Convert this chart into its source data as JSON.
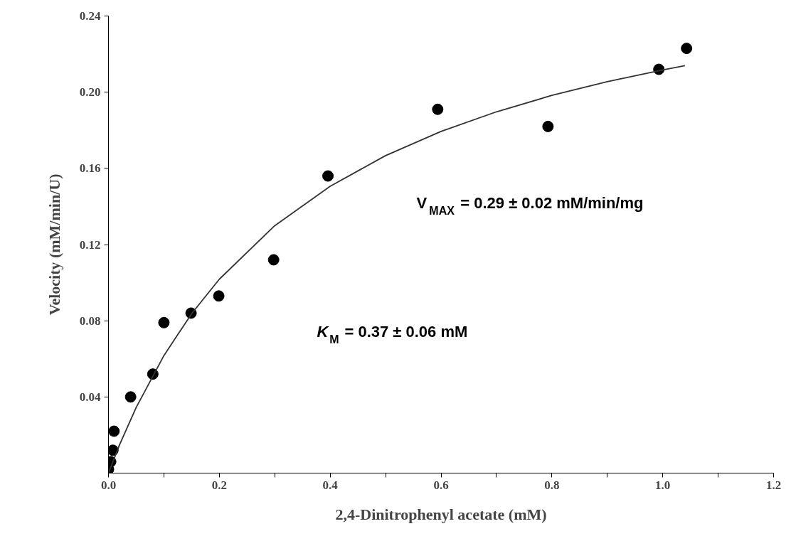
{
  "chart_data": {
    "type": "scatter",
    "xlabel": "2,4-Dinitrophenyl acetate (mM)",
    "ylabel": "Velocity (mM/min/U)",
    "xlim": [
      0,
      1.2
    ],
    "ylim": [
      0,
      0.24
    ],
    "xticks": [
      {
        "value": 0,
        "label": "0.0"
      },
      {
        "value": 0.1,
        "label": null
      },
      0.2,
      {
        "value": 0.3,
        "label": null
      },
      0.4,
      {
        "value": 0.5,
        "label": null
      },
      0.6,
      {
        "value": 0.7,
        "label": null
      },
      0.8,
      {
        "value": 0.9,
        "label": null
      },
      {
        "value": 1.0,
        "label": "1.0"
      },
      {
        "value": 1.1,
        "label": null
      },
      1.2
    ],
    "yticks": [
      0.04,
      0.08,
      0.12,
      0.16,
      {
        "value": 0.2,
        "label": "0.20"
      },
      0.24
    ],
    "grid": false,
    "series": [
      {
        "color": "#000000",
        "marker": "circle",
        "x": [
          0,
          0.004,
          0.008,
          0.01,
          0.04,
          0.08,
          0.1,
          0.149,
          0.199,
          0.298,
          0.396,
          0.594,
          0.793,
          0.993,
          1.043
        ],
        "values": [
          0.002,
          0.006,
          0.012,
          0.022,
          0.04,
          0.052,
          0.079,
          0.084,
          0.093,
          0.112,
          0.156,
          0.191,
          0.182,
          0.212,
          0.223
        ]
      },
      {
        "type": "line",
        "color": "#333333",
        "marker": "none",
        "line_style": "solid",
        "x": [
          0,
          0.02,
          0.05,
          0.1,
          0.15,
          0.2,
          0.3,
          0.4,
          0.5,
          0.6,
          0.7,
          0.8,
          0.9,
          1.0,
          1.04
        ],
        "values": [
          0,
          0.0149,
          0.0345,
          0.0617,
          0.0837,
          0.1018,
          0.1299,
          0.1506,
          0.1667,
          0.1794,
          0.1897,
          0.1983,
          0.2055,
          0.2117,
          0.2139
        ]
      }
    ],
    "annotations": [
      "V$_{MAX}$ = 0.29 ± 0.02 mM/min/mg",
      "K$_{M}$ = 0.37 ± 0.06 mM"
    ]
  }
}
